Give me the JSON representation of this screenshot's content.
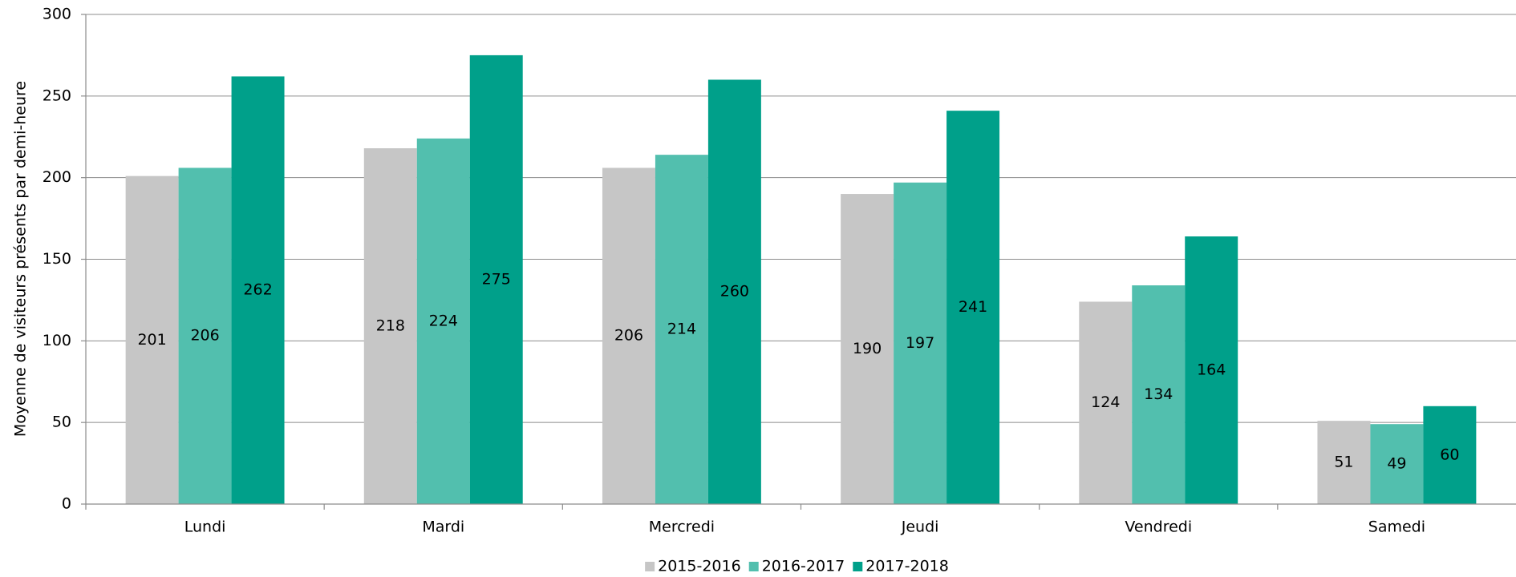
{
  "chart_data": {
    "type": "bar",
    "y_label": "Moyenne de visiteurs présents par demi-heure",
    "categories": [
      "Lundi",
      "Mardi",
      "Mercredi",
      "Jeudi",
      "Vendredi",
      "Samedi"
    ],
    "series": [
      {
        "name": "2015-2016",
        "color": "#c6c6c6",
        "values": [
          201,
          218,
          206,
          190,
          124,
          51
        ]
      },
      {
        "name": "2016-2017",
        "color": "#52bfae",
        "values": [
          206,
          224,
          214,
          197,
          134,
          49
        ]
      },
      {
        "name": "2017-2018",
        "color": "#00a08a",
        "values": [
          262,
          275,
          260,
          241,
          164,
          60
        ]
      }
    ],
    "ylim": [
      0,
      300
    ],
    "yticks": [
      0,
      50,
      100,
      150,
      200,
      250,
      300
    ],
    "grid": true,
    "legend": "bottom"
  }
}
